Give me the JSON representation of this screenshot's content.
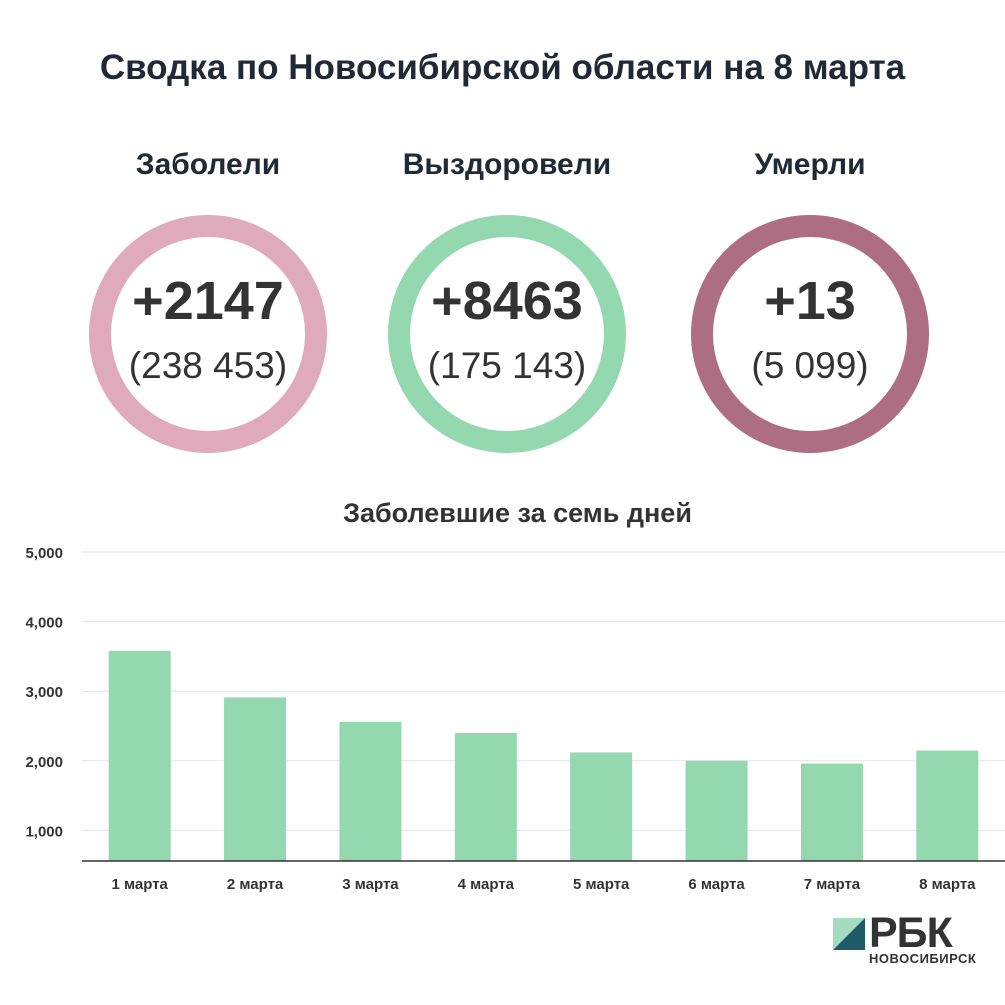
{
  "title": "Сводка по Новосибирской области на 8 марта",
  "stats": [
    {
      "label": "Заболели",
      "delta": "+2147",
      "total": "(238 453)",
      "color": "#dfaabb"
    },
    {
      "label": "Выздоровели",
      "delta": "+8463",
      "total": "(175 143)",
      "color": "#93d8ae"
    },
    {
      "label": "Умерли",
      "delta": "+13",
      "total": "(5 099)",
      "color": "#ad6e83"
    }
  ],
  "chart_title": "Заболевшие за семь дней",
  "chart_data": {
    "type": "bar",
    "title": "Заболевшие за семь дней",
    "categories": [
      "1 марта",
      "2 марта",
      "3 марта",
      "4 марта",
      "5 марта",
      "6 марта",
      "7 марта",
      "8 марта"
    ],
    "values": [
      3580,
      2910,
      2560,
      2400,
      2120,
      2000,
      1960,
      2147
    ],
    "ylim": [
      560,
      5000
    ],
    "yticks": [
      1000,
      2000,
      3000,
      4000,
      5000
    ],
    "ytick_labels": [
      "1,000",
      "2,000",
      "3,000",
      "4,000",
      "5,000"
    ],
    "grid": true,
    "bar_color": "#93d8ae"
  },
  "logo": {
    "word": "РБК",
    "sub": "НОВОСИБИРСК"
  }
}
